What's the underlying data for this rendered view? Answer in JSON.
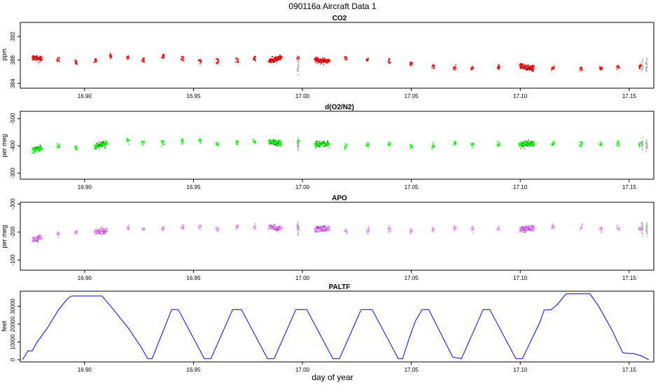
{
  "figure": {
    "title": "090116a   Aircraft Data 1",
    "xlabel": "day of year"
  },
  "chart_data": [
    {
      "type": "scatter",
      "title": "CO2",
      "ylabel": "ppm",
      "xlim": [
        16.8705,
        17.1613
      ],
      "ylim": [
        383.2,
        394.4
      ],
      "xticks": [
        16.9,
        16.95,
        17.0,
        17.05,
        17.1,
        17.15
      ],
      "xticklabels": [
        "16.90",
        "16.95",
        "17.00",
        "17.05",
        "17.10",
        "17.15"
      ],
      "yticks": [
        384,
        388,
        392
      ],
      "yticklabels": [
        "384",
        "388",
        "392"
      ],
      "colors": {
        "dark": "#8b0000",
        "main": "#ff0000",
        "flagged": "#a9a9a9"
      },
      "series": [
        {
          "values": [
            [
              16.8765,
              388.4
            ],
            [
              16.88,
              388.2
            ],
            [
              16.888,
              388.0
            ],
            [
              16.896,
              387.6
            ],
            [
              16.905,
              387.9
            ],
            [
              16.912,
              388.6
            ],
            [
              16.92,
              388.4
            ],
            [
              16.927,
              388.0
            ],
            [
              16.936,
              388.6
            ],
            [
              16.945,
              388.2
            ],
            [
              16.953,
              387.8
            ],
            [
              16.961,
              387.8
            ],
            [
              16.97,
              387.9
            ],
            [
              16.978,
              388.1
            ],
            [
              16.985,
              387.9
            ],
            [
              16.99,
              388.3
            ],
            [
              16.998,
              388.3
            ],
            [
              17.006,
              388.0
            ],
            [
              17.012,
              387.8
            ],
            [
              17.02,
              388.4
            ],
            [
              17.03,
              388.0
            ],
            [
              17.04,
              387.8
            ],
            [
              17.05,
              387.4
            ],
            [
              17.06,
              386.9
            ],
            [
              17.07,
              386.7
            ],
            [
              17.078,
              386.6
            ],
            [
              17.09,
              386.8
            ],
            [
              17.1,
              387.0
            ],
            [
              17.106,
              386.5
            ],
            [
              17.115,
              386.6
            ],
            [
              17.128,
              386.5
            ],
            [
              17.137,
              386.6
            ],
            [
              17.145,
              386.8
            ],
            [
              17.155,
              387.0
            ]
          ]
        }
      ]
    },
    {
      "type": "scatter",
      "title": "d(O2/N2)",
      "ylabel": "per meg",
      "xlim": [
        16.8705,
        17.1613
      ],
      "ylim": [
        -527,
        -278
      ],
      "reversed_y": true,
      "xticks": [
        16.9,
        16.95,
        17.0,
        17.05,
        17.1,
        17.15
      ],
      "xticklabels": [
        "16.90",
        "16.95",
        "17.00",
        "17.05",
        "17.10",
        "17.15"
      ],
      "yticks": [
        -300,
        -400,
        -500
      ],
      "yticklabels": [
        "-300",
        "-400",
        "-500"
      ],
      "colors": {
        "dark": "#006400",
        "main": "#00ff00",
        "flagged": "#a9a9a9"
      },
      "series": [
        {
          "values": [
            [
              16.8765,
              -383
            ],
            [
              16.88,
              -392
            ],
            [
              16.888,
              -397
            ],
            [
              16.896,
              -392
            ],
            [
              16.905,
              -398
            ],
            [
              16.91,
              -408
            ],
            [
              16.92,
              -417
            ],
            [
              16.927,
              -412
            ],
            [
              16.936,
              -413
            ],
            [
              16.945,
              -416
            ],
            [
              16.953,
              -417
            ],
            [
              16.961,
              -409
            ],
            [
              16.97,
              -413
            ],
            [
              16.978,
              -415
            ],
            [
              16.985,
              -414
            ],
            [
              16.99,
              -409
            ],
            [
              16.998,
              -417
            ],
            [
              17.006,
              -405
            ],
            [
              17.012,
              -408
            ],
            [
              17.02,
              -400
            ],
            [
              17.03,
              -405
            ],
            [
              17.04,
              -408
            ],
            [
              17.05,
              -400
            ],
            [
              17.06,
              -399
            ],
            [
              17.07,
              -408
            ],
            [
              17.078,
              -405
            ],
            [
              17.09,
              -406
            ],
            [
              17.1,
              -407
            ],
            [
              17.106,
              -407
            ],
            [
              17.115,
              -408
            ],
            [
              17.128,
              -408
            ],
            [
              17.137,
              -405
            ],
            [
              17.145,
              -408
            ],
            [
              17.155,
              -405
            ]
          ]
        }
      ]
    },
    {
      "type": "scatter",
      "title": "APO",
      "ylabel": "per meg",
      "xlim": [
        16.8705,
        17.1613
      ],
      "ylim": [
        -306,
        -64
      ],
      "reversed_y": true,
      "xticks": [
        16.9,
        16.95,
        17.0,
        17.05,
        17.1,
        17.15
      ],
      "xticklabels": [
        "16.90",
        "16.95",
        "17.00",
        "17.05",
        "17.10",
        "17.15"
      ],
      "yticks": [
        -100,
        -200,
        -300
      ],
      "yticklabels": [
        "-100",
        "-200",
        "-300"
      ],
      "colors": {
        "dark": "#7a1fc4",
        "main": "#ee82ee",
        "flagged": "#a9a9a9"
      },
      "series": [
        {
          "values": [
            [
              16.8765,
              -172
            ],
            [
              16.88,
              -180
            ],
            [
              16.888,
              -193
            ],
            [
              16.896,
              -199
            ],
            [
              16.905,
              -200
            ],
            [
              16.91,
              -205
            ],
            [
              16.92,
              -212
            ],
            [
              16.927,
              -210
            ],
            [
              16.936,
              -212
            ],
            [
              16.945,
              -216
            ],
            [
              16.953,
              -218
            ],
            [
              16.961,
              -211
            ],
            [
              16.97,
              -216
            ],
            [
              16.978,
              -219
            ],
            [
              16.985,
              -218
            ],
            [
              16.99,
              -212
            ],
            [
              16.998,
              -219
            ],
            [
              17.006,
              -210
            ],
            [
              17.012,
              -211
            ],
            [
              17.02,
              -202
            ],
            [
              17.03,
              -205
            ],
            [
              17.04,
              -210
            ],
            [
              17.05,
              -205
            ],
            [
              17.06,
              -208
            ],
            [
              17.07,
              -215
            ],
            [
              17.078,
              -210
            ],
            [
              17.09,
              -211
            ],
            [
              17.1,
              -210
            ],
            [
              17.106,
              -213
            ],
            [
              17.115,
              -218
            ],
            [
              17.128,
              -218
            ],
            [
              17.137,
              -212
            ],
            [
              17.145,
              -215
            ],
            [
              17.155,
              -212
            ]
          ]
        }
      ]
    },
    {
      "type": "line",
      "title": "PALTF",
      "ylabel": "feet",
      "xlim": [
        16.8705,
        17.1613
      ],
      "ylim": [
        -1200,
        38500
      ],
      "xticks": [
        16.9,
        16.95,
        17.0,
        17.05,
        17.1,
        17.15
      ],
      "xticklabels": [
        "16.90",
        "16.95",
        "17.00",
        "17.05",
        "17.10",
        "17.15"
      ],
      "yticks": [
        0,
        10000,
        20000,
        30000
      ],
      "yticklabels": [
        "0",
        "10000",
        "20000",
        "30000"
      ],
      "colors": {
        "main": "#0000ff"
      },
      "series": [
        {
          "values": [
            [
              16.8715,
              0
            ],
            [
              16.874,
              5000
            ],
            [
              16.876,
              5000
            ],
            [
              16.878,
              9500
            ],
            [
              16.883,
              18000
            ],
            [
              16.888,
              28000
            ],
            [
              16.892,
              34000
            ],
            [
              16.894,
              35800
            ],
            [
              16.908,
              35800
            ],
            [
              16.912,
              30000
            ],
            [
              16.92,
              18000
            ],
            [
              16.926,
              7000
            ],
            [
              16.929,
              600
            ],
            [
              16.931,
              600
            ],
            [
              16.94,
              28200
            ],
            [
              16.943,
              28200
            ],
            [
              16.955,
              600
            ],
            [
              16.958,
              600
            ],
            [
              16.968,
              28200
            ],
            [
              16.972,
              28200
            ],
            [
              16.984,
              600
            ],
            [
              16.987,
              600
            ],
            [
              16.997,
              28200
            ],
            [
              17.002,
              28200
            ],
            [
              17.014,
              600
            ],
            [
              17.017,
              600
            ],
            [
              17.027,
              28200
            ],
            [
              17.032,
              28200
            ],
            [
              17.044,
              600
            ],
            [
              17.046,
              600
            ],
            [
              17.049,
              12000
            ],
            [
              17.052,
              22000
            ],
            [
              17.055,
              28200
            ],
            [
              17.058,
              28200
            ],
            [
              17.069,
              1500
            ],
            [
              17.073,
              600
            ],
            [
              17.083,
              28200
            ],
            [
              17.086,
              28200
            ],
            [
              17.098,
              600
            ],
            [
              17.101,
              600
            ],
            [
              17.109,
              21000
            ],
            [
              17.111,
              28000
            ],
            [
              17.114,
              28000
            ],
            [
              17.117,
              31000
            ],
            [
              17.121,
              37000
            ],
            [
              17.132,
              37000
            ],
            [
              17.136,
              30000
            ],
            [
              17.142,
              17000
            ],
            [
              17.147,
              4000
            ],
            [
              17.15,
              3500
            ],
            [
              17.152,
              3500
            ],
            [
              17.156,
              2000
            ],
            [
              17.159,
              0
            ]
          ]
        }
      ]
    }
  ]
}
